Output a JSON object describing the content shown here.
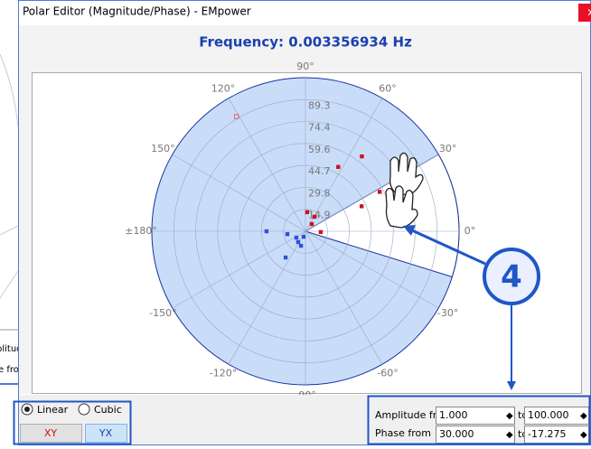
{
  "window": {
    "title": "Polar Editor (Magnitude/Phase) - EMpower",
    "close": "×"
  },
  "background_window": {
    "lines": [
      "plitud",
      "e fro"
    ]
  },
  "plot": {
    "title": "Frequency: 0.003356934 Hz",
    "rlim": [
      0,
      104.2
    ],
    "rticks": [
      14.9,
      29.8,
      44.7,
      59.6,
      74.4,
      89.3
    ],
    "angle_ticks": [
      {
        "value": 90,
        "label": "90°"
      },
      {
        "value": 60,
        "label": "60°"
      },
      {
        "value": 30,
        "label": "30°"
      },
      {
        "value": 0,
        "label": "0°"
      },
      {
        "value": -30,
        "label": "-30°"
      },
      {
        "value": -60,
        "label": "-60°"
      },
      {
        "value": -90,
        "label": "-90°"
      },
      {
        "value": -120,
        "label": "-120°"
      },
      {
        "value": -150,
        "label": "-150°"
      },
      {
        "value": 180,
        "label": "±180°"
      },
      {
        "value": 150,
        "label": "150°"
      },
      {
        "value": 120,
        "label": "120°"
      }
    ],
    "red_points": {
      "color": "#d0101e",
      "magnitude": [
        57,
        41.7,
        49,
        63.6,
        10.4,
        11.6,
        6.5,
        13
      ],
      "phase": [
        28,
        24,
        63,
        53,
        -3,
        58,
        49,
        85
      ]
    },
    "pink_points": {
      "color": "#e0607a",
      "magnitude": [
        90.8
      ],
      "phase": [
        121
      ]
    },
    "blue_points": {
      "color": "#3050d8",
      "magnitude": [
        26.4,
        12.4,
        8.8,
        10.3,
        22.3,
        3.9,
        7.5
      ],
      "phase": [
        180,
        -171,
        -124,
        -107,
        -127,
        -108,
        -145
      ]
    }
  },
  "annotation": {
    "number": "4"
  },
  "interpolation": {
    "options": [
      "Linear",
      "Cubic"
    ],
    "selected": "Linear"
  },
  "buttons": [
    "XY",
    "YX"
  ],
  "range": {
    "amplitude_label": "Amplitude from",
    "amplitude_from": "1.000",
    "amplitude_to": "100.000",
    "phase_label": "Phase from",
    "phase_from": "30.000",
    "phase_to": "-17.275",
    "to": "to"
  }
}
